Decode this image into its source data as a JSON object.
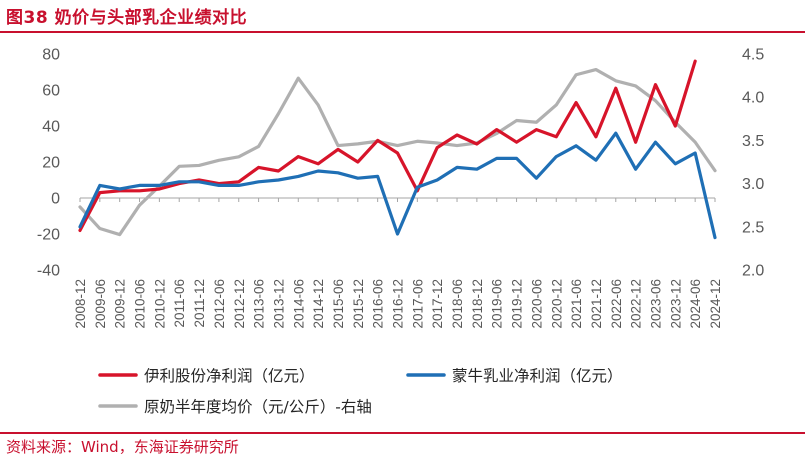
{
  "header": {
    "title": "图38  奶价与头部乳企业绩对比"
  },
  "footer": {
    "source": "资料来源：Wind，东海证券研究所"
  },
  "colors": {
    "yili": "#d7142a",
    "mengniu": "#1f6fb5",
    "milk": "#b0b0b0",
    "accent": "#c8102e"
  },
  "chart_data": {
    "type": "line",
    "x": [
      "2008-12",
      "2009-06",
      "2009-12",
      "2010-06",
      "2010-12",
      "2011-06",
      "2011-12",
      "2012-06",
      "2012-12",
      "2013-06",
      "2013-12",
      "2014-06",
      "2014-12",
      "2015-06",
      "2015-12",
      "2016-06",
      "2016-12",
      "2017-06",
      "2017-12",
      "2018-06",
      "2018-12",
      "2019-06",
      "2019-12",
      "2020-06",
      "2020-12",
      "2021-06",
      "2021-12",
      "2022-06",
      "2022-12",
      "2023-06",
      "2023-12",
      "2024-06",
      "2024-12"
    ],
    "left_axis": {
      "ylim": [
        -40,
        80
      ],
      "ticks": [
        -40,
        -20,
        0,
        20,
        40,
        60,
        80
      ]
    },
    "right_axis": {
      "ylim": [
        2.0,
        4.5
      ],
      "ticks": [
        "2.0",
        "2.5",
        "3.0",
        "3.5",
        "4.0",
        "4.5"
      ]
    },
    "grid": false,
    "legend_position": "bottom",
    "series": [
      {
        "name": "伊利股份净利润（亿元）",
        "axis": "left",
        "color": "#d7142a",
        "values": [
          -18,
          3,
          4,
          4,
          5,
          8,
          10,
          8,
          9,
          17,
          15,
          23,
          19,
          27,
          20,
          32,
          25,
          4,
          28,
          35,
          30,
          38,
          31,
          38,
          34,
          53,
          34,
          61,
          31,
          63,
          40,
          76,
          null
        ]
      },
      {
        "name": "蒙牛乳业净利润（亿元）",
        "axis": "left",
        "color": "#1f6fb5",
        "values": [
          -16,
          7,
          5,
          7,
          7,
          9,
          9,
          7,
          7,
          9,
          10,
          12,
          15,
          14,
          11,
          12,
          -20,
          6,
          10,
          17,
          16,
          22,
          22,
          11,
          23,
          29,
          21,
          36,
          16,
          31,
          19,
          25,
          -22
        ]
      },
      {
        "name": "原奶半年度均价（元/公斤）-右轴",
        "axis": "right",
        "color": "#b0b0b0",
        "values": [
          2.73,
          2.48,
          2.41,
          2.75,
          2.97,
          3.2,
          3.21,
          3.27,
          3.31,
          3.43,
          3.81,
          4.22,
          3.91,
          3.44,
          3.46,
          3.49,
          3.44,
          3.49,
          3.47,
          3.44,
          3.47,
          3.58,
          3.73,
          3.71,
          3.91,
          4.26,
          4.32,
          4.19,
          4.13,
          3.96,
          3.71,
          3.48,
          3.15
        ]
      }
    ]
  }
}
